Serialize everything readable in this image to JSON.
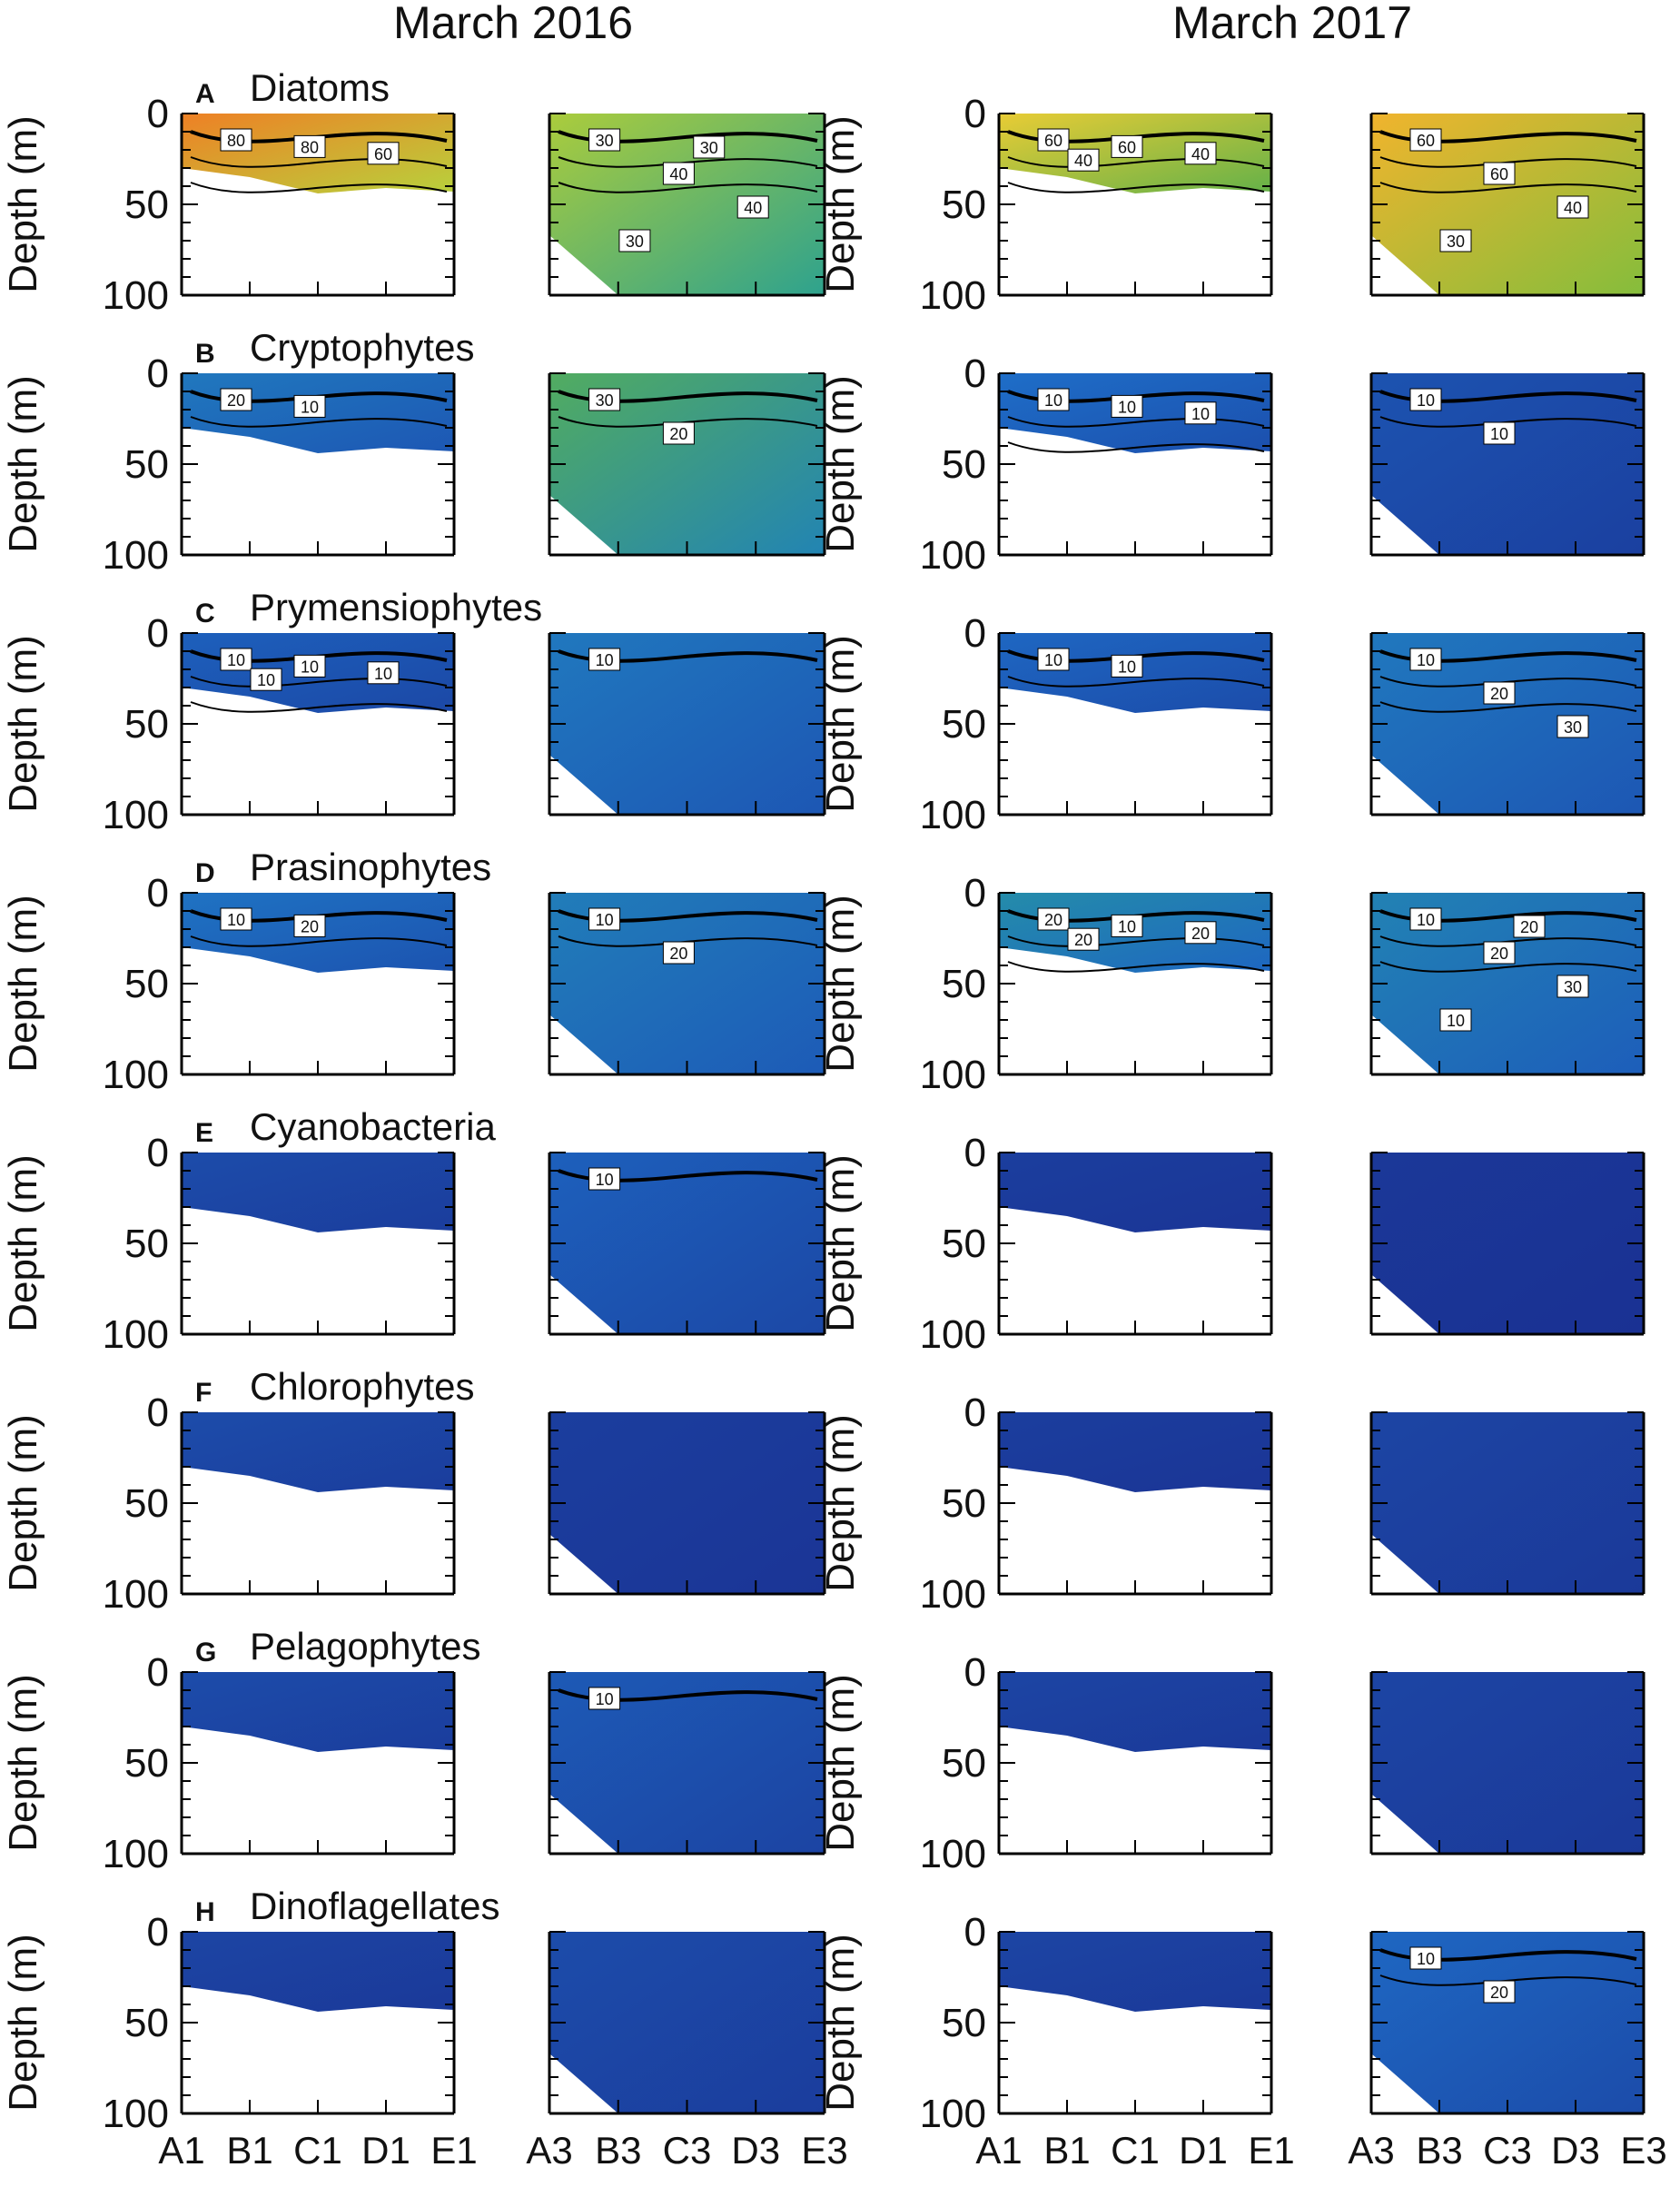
{
  "figure": {
    "column_titles": [
      "March 2016",
      "March 2017"
    ],
    "y_axis_label": "Depth (m)",
    "depth_ticks": [
      0,
      50,
      100
    ],
    "stations_1": [
      "A1",
      "B1",
      "C1",
      "D1",
      "E1"
    ],
    "stations_3": [
      "A3",
      "B3",
      "C3",
      "D3",
      "E3"
    ]
  },
  "chart_data": {
    "type": "heatmap",
    "description_units": "contour labels as printed",
    "ylabel": "Depth (m)",
    "ylim": [
      0,
      100
    ],
    "x_sections": [
      {
        "year": "March 2016",
        "transect": [
          "A1",
          "B1",
          "C1",
          "D1",
          "E1"
        ]
      },
      {
        "year": "March 2016",
        "transect": [
          "A3",
          "B3",
          "C3",
          "D3",
          "E3"
        ]
      },
      {
        "year": "March 2017",
        "transect": [
          "A1",
          "B1",
          "C1",
          "D1",
          "E1"
        ]
      },
      {
        "year": "March 2017",
        "transect": [
          "A3",
          "B3",
          "C3",
          "D3",
          "E3"
        ]
      }
    ],
    "rows": [
      {
        "letter": "A",
        "title": "Diatoms",
        "panels": [
          {
            "level": 72,
            "contour_labels": [
              "80",
              "80",
              "60"
            ]
          },
          {
            "level": 38,
            "contour_labels": [
              "30",
              "40",
              "40",
              "30",
              "30"
            ]
          },
          {
            "level": 52,
            "contour_labels": [
              "60",
              "60",
              "40",
              "40"
            ]
          },
          {
            "level": 60,
            "contour_labels": [
              "60",
              "60",
              "40",
              "30"
            ]
          }
        ]
      },
      {
        "letter": "B",
        "title": "Cryptophytes",
        "panels": [
          {
            "level": 12,
            "contour_labels": [
              "20",
              "10"
            ]
          },
          {
            "level": 26,
            "contour_labels": [
              "30",
              "20"
            ]
          },
          {
            "level": 10,
            "contour_labels": [
              "10",
              "10",
              "10"
            ]
          },
          {
            "level": 6,
            "contour_labels": [
              "10",
              "10"
            ]
          }
        ]
      },
      {
        "letter": "C",
        "title": "Prymensiophytes",
        "panels": [
          {
            "level": 8,
            "contour_labels": [
              "10",
              "10",
              "10",
              "10"
            ]
          },
          {
            "level": 12,
            "contour_labels": [
              "10"
            ]
          },
          {
            "level": 9,
            "contour_labels": [
              "10",
              "10"
            ]
          },
          {
            "level": 12,
            "contour_labels": [
              "10",
              "20",
              "30"
            ]
          }
        ]
      },
      {
        "letter": "D",
        "title": "Prasinophytes",
        "panels": [
          {
            "level": 11,
            "contour_labels": [
              "10",
              "20"
            ]
          },
          {
            "level": 13,
            "contour_labels": [
              "10",
              "20"
            ]
          },
          {
            "level": 16,
            "contour_labels": [
              "20",
              "10",
              "20",
              "20"
            ]
          },
          {
            "level": 14,
            "contour_labels": [
              "10",
              "20",
              "30",
              "10",
              "20"
            ]
          }
        ]
      },
      {
        "letter": "E",
        "title": "Cyanobacteria",
        "panels": [
          {
            "level": 5,
            "contour_labels": []
          },
          {
            "level": 8,
            "contour_labels": [
              "10"
            ]
          },
          {
            "level": 3,
            "contour_labels": []
          },
          {
            "level": 2,
            "contour_labels": []
          }
        ]
      },
      {
        "letter": "F",
        "title": "Chlorophytes",
        "panels": [
          {
            "level": 5,
            "contour_labels": []
          },
          {
            "level": 3,
            "contour_labels": []
          },
          {
            "level": 3,
            "contour_labels": []
          },
          {
            "level": 4,
            "contour_labels": []
          }
        ]
      },
      {
        "letter": "G",
        "title": "Pelagophytes",
        "panels": [
          {
            "level": 5,
            "contour_labels": []
          },
          {
            "level": 7,
            "contour_labels": [
              "10"
            ]
          },
          {
            "level": 4,
            "contour_labels": []
          },
          {
            "level": 4,
            "contour_labels": []
          }
        ]
      },
      {
        "letter": "H",
        "title": "Dinoflagellates",
        "panels": [
          {
            "level": 4,
            "contour_labels": []
          },
          {
            "level": 5,
            "contour_labels": []
          },
          {
            "level": 4,
            "contour_labels": []
          },
          {
            "level": 9,
            "contour_labels": [
              "10",
              "20"
            ]
          }
        ]
      }
    ]
  }
}
